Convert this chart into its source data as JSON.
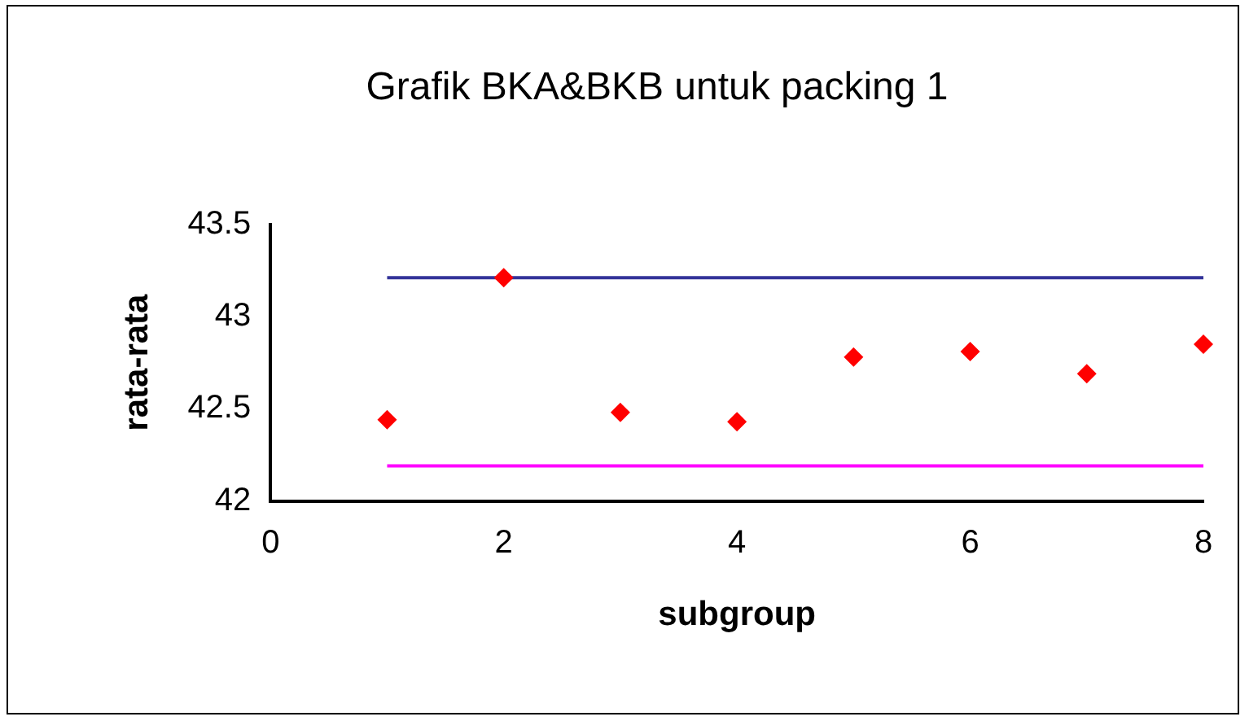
{
  "chart_data": {
    "type": "scatter",
    "title": "Grafik BKA&BKB untuk packing 1",
    "xlabel": "subgroup",
    "ylabel": "rata-rata",
    "xlim": [
      0,
      8
    ],
    "xticks": [
      0,
      2,
      4,
      6,
      8
    ],
    "ylim": [
      42,
      43.5
    ],
    "yticks": [
      42,
      42.5,
      43,
      43.5
    ],
    "grid": false,
    "legend": false,
    "marker": "diamond",
    "series": [
      {
        "type": "scatter",
        "color": "#ff0000",
        "x": [
          1,
          2,
          3,
          4,
          5,
          6,
          7,
          8
        ],
        "values": [
          42.44,
          43.21,
          42.48,
          42.43,
          42.78,
          42.81,
          42.69,
          42.85
        ]
      },
      {
        "type": "line",
        "color": "#333399",
        "x": [
          1,
          8
        ],
        "values": [
          43.21,
          43.21
        ],
        "marker": "none"
      },
      {
        "type": "line",
        "color": "#ff00ff",
        "x": [
          1,
          8
        ],
        "values": [
          42.19,
          42.19
        ],
        "marker": "none"
      }
    ]
  }
}
